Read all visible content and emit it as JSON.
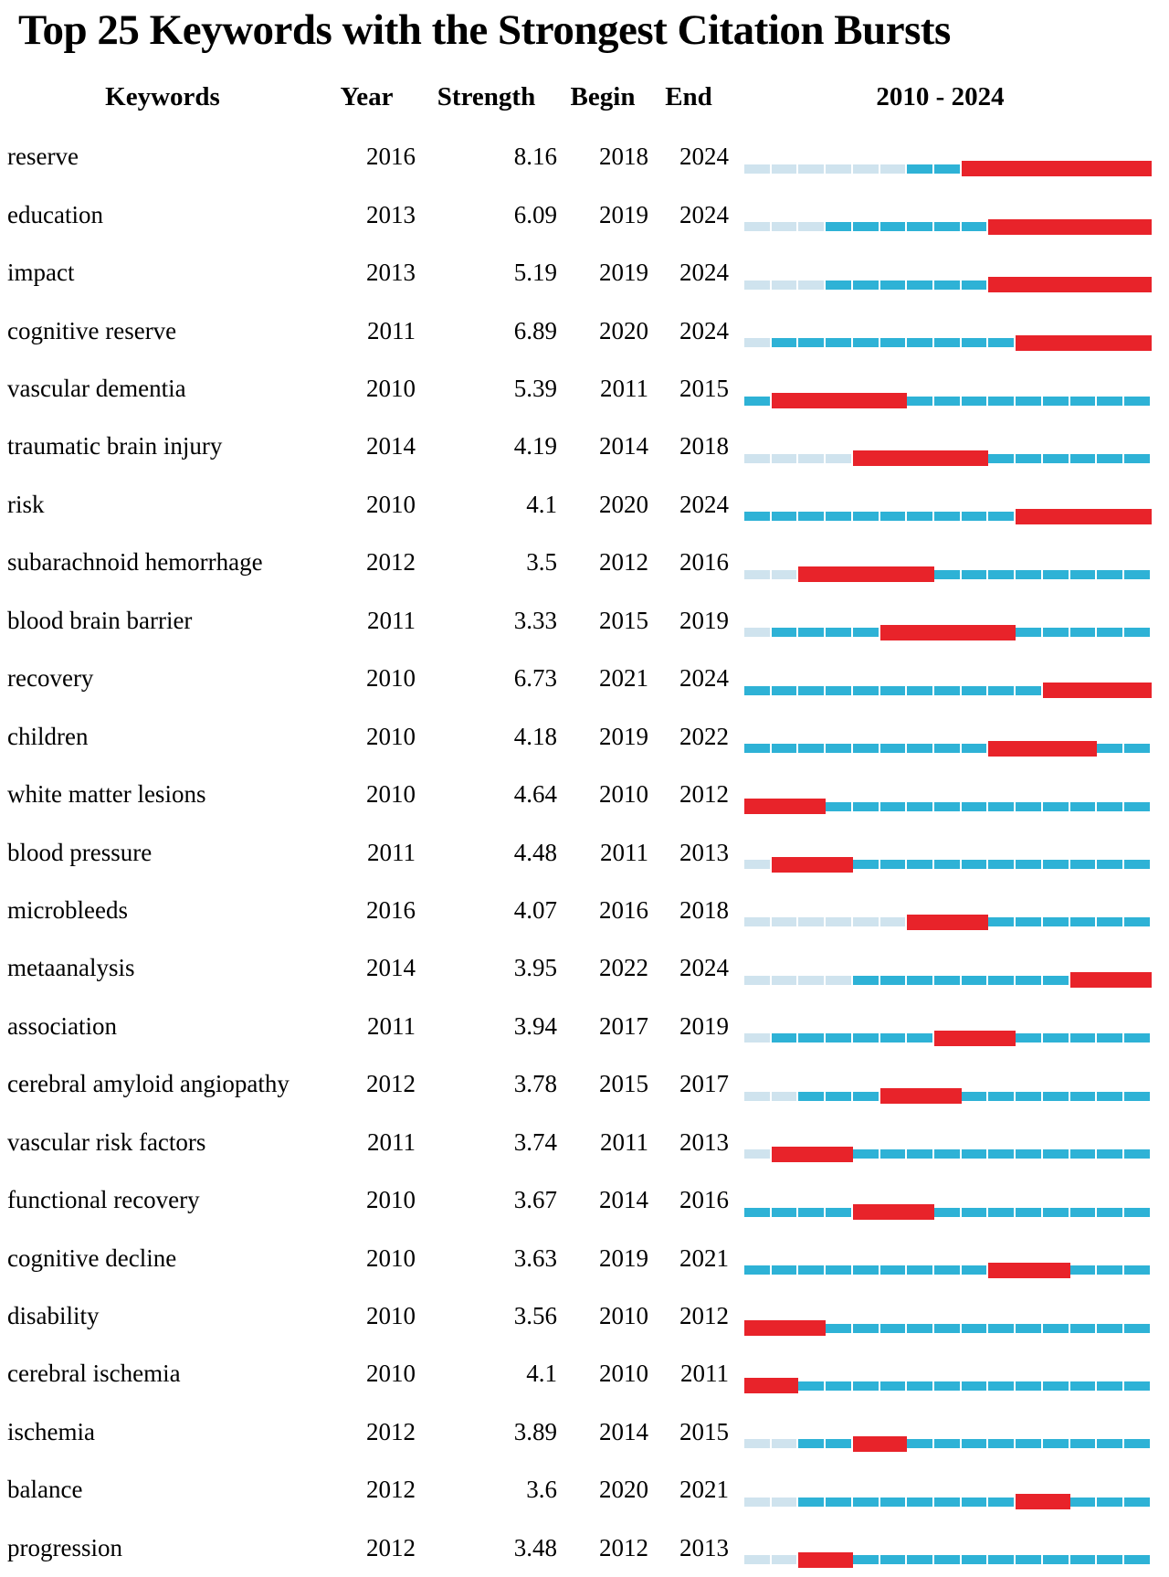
{
  "title": "Top 25 Keywords with the Strongest Citation Bursts",
  "columns": {
    "keyword": "Keywords",
    "year": "Year",
    "strength": "Strength",
    "begin": "Begin",
    "end": "End",
    "range": "2010 - 2024"
  },
  "colors": {
    "pale_preburst": "#cfe3ee",
    "active_line": "#2eb2d6",
    "burst": "#e8232a",
    "text": "#000000",
    "background": "#ffffff"
  },
  "chart_data": {
    "type": "table",
    "title": "Top 25 Keywords with the Strongest Citation Bursts",
    "timeline": {
      "start": 2010,
      "end": 2024
    },
    "legend": {
      "pale_segment": "years before keyword first appearance",
      "cyan_segment": "years keyword active without burst",
      "red_segment": "citation burst interval (Begin to End)"
    },
    "rows": [
      {
        "keyword": "reserve",
        "year": 2016,
        "strength": "8.16",
        "begin": 2018,
        "end": 2024
      },
      {
        "keyword": "education",
        "year": 2013,
        "strength": "6.09",
        "begin": 2019,
        "end": 2024
      },
      {
        "keyword": "impact",
        "year": 2013,
        "strength": "5.19",
        "begin": 2019,
        "end": 2024
      },
      {
        "keyword": "cognitive reserve",
        "year": 2011,
        "strength": "6.89",
        "begin": 2020,
        "end": 2024
      },
      {
        "keyword": "vascular dementia",
        "year": 2010,
        "strength": "5.39",
        "begin": 2011,
        "end": 2015
      },
      {
        "keyword": "traumatic brain injury",
        "year": 2014,
        "strength": "4.19",
        "begin": 2014,
        "end": 2018
      },
      {
        "keyword": "risk",
        "year": 2010,
        "strength": "4.1",
        "begin": 2020,
        "end": 2024
      },
      {
        "keyword": "subarachnoid hemorrhage",
        "year": 2012,
        "strength": "3.5",
        "begin": 2012,
        "end": 2016
      },
      {
        "keyword": "blood brain barrier",
        "year": 2011,
        "strength": "3.33",
        "begin": 2015,
        "end": 2019
      },
      {
        "keyword": "recovery",
        "year": 2010,
        "strength": "6.73",
        "begin": 2021,
        "end": 2024
      },
      {
        "keyword": "children",
        "year": 2010,
        "strength": "4.18",
        "begin": 2019,
        "end": 2022
      },
      {
        "keyword": "white matter lesions",
        "year": 2010,
        "strength": "4.64",
        "begin": 2010,
        "end": 2012
      },
      {
        "keyword": "blood pressure",
        "year": 2011,
        "strength": "4.48",
        "begin": 2011,
        "end": 2013
      },
      {
        "keyword": "microbleeds",
        "year": 2016,
        "strength": "4.07",
        "begin": 2016,
        "end": 2018
      },
      {
        "keyword": "metaanalysis",
        "year": 2014,
        "strength": "3.95",
        "begin": 2022,
        "end": 2024
      },
      {
        "keyword": "association",
        "year": 2011,
        "strength": "3.94",
        "begin": 2017,
        "end": 2019
      },
      {
        "keyword": "cerebral amyloid angiopathy",
        "year": 2012,
        "strength": "3.78",
        "begin": 2015,
        "end": 2017
      },
      {
        "keyword": "vascular risk factors",
        "year": 2011,
        "strength": "3.74",
        "begin": 2011,
        "end": 2013
      },
      {
        "keyword": "functional recovery",
        "year": 2010,
        "strength": "3.67",
        "begin": 2014,
        "end": 2016
      },
      {
        "keyword": "cognitive decline",
        "year": 2010,
        "strength": "3.63",
        "begin": 2019,
        "end": 2021
      },
      {
        "keyword": "disability",
        "year": 2010,
        "strength": "3.56",
        "begin": 2010,
        "end": 2012
      },
      {
        "keyword": "cerebral ischemia",
        "year": 2010,
        "strength": "4.1",
        "begin": 2010,
        "end": 2011
      },
      {
        "keyword": "ischemia",
        "year": 2012,
        "strength": "3.89",
        "begin": 2014,
        "end": 2015
      },
      {
        "keyword": "balance",
        "year": 2012,
        "strength": "3.6",
        "begin": 2020,
        "end": 2021
      },
      {
        "keyword": "progression",
        "year": 2012,
        "strength": "3.48",
        "begin": 2012,
        "end": 2013
      }
    ]
  }
}
